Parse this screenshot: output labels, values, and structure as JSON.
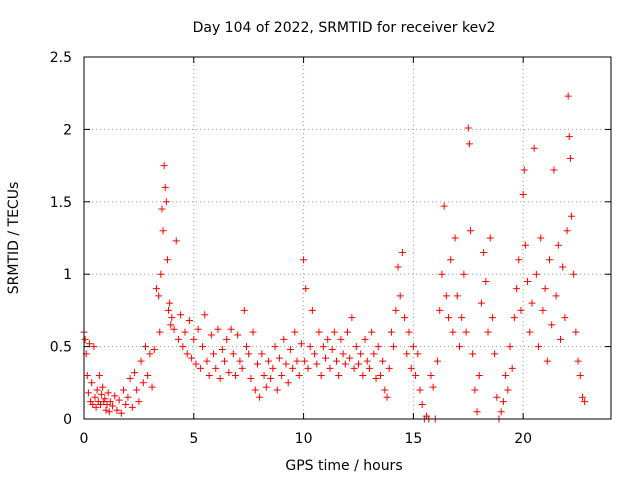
{
  "chart_data": {
    "type": "scatter",
    "title": "Day 104 of 2022, SRMTID for receiver kev2",
    "xlabel": "GPS time / hours",
    "ylabel": "SRMTID / TECUs",
    "xlim": [
      0,
      24
    ],
    "ylim": [
      0,
      2.5
    ],
    "xticks": [
      0,
      5,
      10,
      15,
      20
    ],
    "xtick_labels": [
      "0",
      "5",
      "10",
      "15",
      "20"
    ],
    "yticks": [
      0,
      0.5,
      1,
      1.5,
      2,
      2.5
    ],
    "ytick_labels": [
      "0",
      "0.5",
      "1",
      "1.5",
      "2",
      "2.5"
    ],
    "grid": true,
    "marker": "plus",
    "series": [
      {
        "name": "kev2",
        "color": "#ff0000",
        "points": [
          [
            0.0,
            0.6
          ],
          [
            0.05,
            0.55
          ],
          [
            0.1,
            0.45
          ],
          [
            0.15,
            0.3
          ],
          [
            0.2,
            0.18
          ],
          [
            0.25,
            0.52
          ],
          [
            0.3,
            0.12
          ],
          [
            0.35,
            0.25
          ],
          [
            0.4,
            0.1
          ],
          [
            0.45,
            0.5
          ],
          [
            0.5,
            0.15
          ],
          [
            0.55,
            0.08
          ],
          [
            0.6,
            0.2
          ],
          [
            0.65,
            0.12
          ],
          [
            0.7,
            0.3
          ],
          [
            0.75,
            0.1
          ],
          [
            0.8,
            0.17
          ],
          [
            0.85,
            0.22
          ],
          [
            0.9,
            0.12
          ],
          [
            0.95,
            0.14
          ],
          [
            1.0,
            0.06
          ],
          [
            1.05,
            0.1
          ],
          [
            1.1,
            0.18
          ],
          [
            1.15,
            0.05
          ],
          [
            1.2,
            0.12
          ],
          [
            1.3,
            0.09
          ],
          [
            1.4,
            0.16
          ],
          [
            1.5,
            0.06
          ],
          [
            1.6,
            0.13
          ],
          [
            1.7,
            0.04
          ],
          [
            1.8,
            0.2
          ],
          [
            1.9,
            0.1
          ],
          [
            2.0,
            0.15
          ],
          [
            2.1,
            0.28
          ],
          [
            2.2,
            0.08
          ],
          [
            2.3,
            0.32
          ],
          [
            2.4,
            0.2
          ],
          [
            2.5,
            0.12
          ],
          [
            2.6,
            0.4
          ],
          [
            2.7,
            0.25
          ],
          [
            2.8,
            0.5
          ],
          [
            2.9,
            0.3
          ],
          [
            3.0,
            0.45
          ],
          [
            3.1,
            0.22
          ],
          [
            3.2,
            0.48
          ],
          [
            3.3,
            0.9
          ],
          [
            3.4,
            0.85
          ],
          [
            3.45,
            0.6
          ],
          [
            3.5,
            1.0
          ],
          [
            3.55,
            1.45
          ],
          [
            3.6,
            1.3
          ],
          [
            3.65,
            1.75
          ],
          [
            3.7,
            1.6
          ],
          [
            3.75,
            1.5
          ],
          [
            3.8,
            1.1
          ],
          [
            3.85,
            0.75
          ],
          [
            3.9,
            0.8
          ],
          [
            3.95,
            0.65
          ],
          [
            4.0,
            0.7
          ],
          [
            4.1,
            0.62
          ],
          [
            4.2,
            1.23
          ],
          [
            4.3,
            0.55
          ],
          [
            4.4,
            0.72
          ],
          [
            4.5,
            0.5
          ],
          [
            4.6,
            0.6
          ],
          [
            4.7,
            0.45
          ],
          [
            4.8,
            0.68
          ],
          [
            4.9,
            0.42
          ],
          [
            5.0,
            0.55
          ],
          [
            5.1,
            0.38
          ],
          [
            5.2,
            0.62
          ],
          [
            5.3,
            0.35
          ],
          [
            5.4,
            0.5
          ],
          [
            5.5,
            0.72
          ],
          [
            5.6,
            0.4
          ],
          [
            5.7,
            0.3
          ],
          [
            5.8,
            0.58
          ],
          [
            5.9,
            0.45
          ],
          [
            6.0,
            0.35
          ],
          [
            6.1,
            0.62
          ],
          [
            6.2,
            0.28
          ],
          [
            6.3,
            0.48
          ],
          [
            6.4,
            0.4
          ],
          [
            6.5,
            0.55
          ],
          [
            6.6,
            0.32
          ],
          [
            6.7,
            0.62
          ],
          [
            6.8,
            0.45
          ],
          [
            6.9,
            0.3
          ],
          [
            7.0,
            0.58
          ],
          [
            7.1,
            0.4
          ],
          [
            7.2,
            0.35
          ],
          [
            7.3,
            0.75
          ],
          [
            7.4,
            0.5
          ],
          [
            7.5,
            0.45
          ],
          [
            7.6,
            0.28
          ],
          [
            7.7,
            0.6
          ],
          [
            7.8,
            0.2
          ],
          [
            7.9,
            0.38
          ],
          [
            8.0,
            0.15
          ],
          [
            8.1,
            0.45
          ],
          [
            8.2,
            0.3
          ],
          [
            8.3,
            0.22
          ],
          [
            8.4,
            0.4
          ],
          [
            8.5,
            0.28
          ],
          [
            8.6,
            0.35
          ],
          [
            8.7,
            0.5
          ],
          [
            8.8,
            0.2
          ],
          [
            8.9,
            0.42
          ],
          [
            9.0,
            0.3
          ],
          [
            9.1,
            0.55
          ],
          [
            9.2,
            0.38
          ],
          [
            9.3,
            0.25
          ],
          [
            9.4,
            0.48
          ],
          [
            9.5,
            0.35
          ],
          [
            9.6,
            0.6
          ],
          [
            9.7,
            0.4
          ],
          [
            9.8,
            0.3
          ],
          [
            9.9,
            0.52
          ],
          [
            10.0,
            1.1
          ],
          [
            10.05,
            0.4
          ],
          [
            10.1,
            0.9
          ],
          [
            10.2,
            0.35
          ],
          [
            10.3,
            0.5
          ],
          [
            10.4,
            0.75
          ],
          [
            10.5,
            0.45
          ],
          [
            10.6,
            0.38
          ],
          [
            10.7,
            0.6
          ],
          [
            10.8,
            0.3
          ],
          [
            10.9,
            0.5
          ],
          [
            11.0,
            0.42
          ],
          [
            11.1,
            0.55
          ],
          [
            11.2,
            0.35
          ],
          [
            11.3,
            0.48
          ],
          [
            11.4,
            0.6
          ],
          [
            11.5,
            0.4
          ],
          [
            11.6,
            0.3
          ],
          [
            11.7,
            0.55
          ],
          [
            11.8,
            0.45
          ],
          [
            11.9,
            0.38
          ],
          [
            12.0,
            0.6
          ],
          [
            12.1,
            0.42
          ],
          [
            12.2,
            0.7
          ],
          [
            12.3,
            0.35
          ],
          [
            12.4,
            0.5
          ],
          [
            12.5,
            0.38
          ],
          [
            12.6,
            0.45
          ],
          [
            12.7,
            0.3
          ],
          [
            12.8,
            0.55
          ],
          [
            12.9,
            0.4
          ],
          [
            13.0,
            0.35
          ],
          [
            13.1,
            0.6
          ],
          [
            13.2,
            0.45
          ],
          [
            13.3,
            0.28
          ],
          [
            13.4,
            0.5
          ],
          [
            13.5,
            0.3
          ],
          [
            13.6,
            0.4
          ],
          [
            13.7,
            0.2
          ],
          [
            13.8,
            0.15
          ],
          [
            13.9,
            0.35
          ],
          [
            14.0,
            0.6
          ],
          [
            14.1,
            0.5
          ],
          [
            14.2,
            0.75
          ],
          [
            14.3,
            1.05
          ],
          [
            14.4,
            0.85
          ],
          [
            14.5,
            1.15
          ],
          [
            14.6,
            0.7
          ],
          [
            14.7,
            0.45
          ],
          [
            14.8,
            0.6
          ],
          [
            14.9,
            0.35
          ],
          [
            15.0,
            0.5
          ],
          [
            15.1,
            0.3
          ],
          [
            15.2,
            0.45
          ],
          [
            15.3,
            0.2
          ],
          [
            15.4,
            0.1
          ],
          [
            15.5,
            0.0
          ],
          [
            15.6,
            0.02
          ],
          [
            15.7,
            0.0
          ],
          [
            15.8,
            0.3
          ],
          [
            15.9,
            0.22
          ],
          [
            16.0,
            0.0
          ],
          [
            16.1,
            0.4
          ],
          [
            16.2,
            0.75
          ],
          [
            16.3,
            1.0
          ],
          [
            16.4,
            1.47
          ],
          [
            16.5,
            0.85
          ],
          [
            16.6,
            0.7
          ],
          [
            16.7,
            1.1
          ],
          [
            16.8,
            0.6
          ],
          [
            16.9,
            1.25
          ],
          [
            17.0,
            0.85
          ],
          [
            17.1,
            0.5
          ],
          [
            17.2,
            0.7
          ],
          [
            17.3,
            1.0
          ],
          [
            17.4,
            0.6
          ],
          [
            17.5,
            2.01
          ],
          [
            17.55,
            1.9
          ],
          [
            17.6,
            1.3
          ],
          [
            17.7,
            0.45
          ],
          [
            17.8,
            0.2
          ],
          [
            17.9,
            0.05
          ],
          [
            18.0,
            0.3
          ],
          [
            18.1,
            0.8
          ],
          [
            18.2,
            1.15
          ],
          [
            18.3,
            0.95
          ],
          [
            18.4,
            0.6
          ],
          [
            18.5,
            1.25
          ],
          [
            18.6,
            0.7
          ],
          [
            18.7,
            0.45
          ],
          [
            18.8,
            0.15
          ],
          [
            18.9,
            0.0
          ],
          [
            19.0,
            0.05
          ],
          [
            19.1,
            0.12
          ],
          [
            19.2,
            0.3
          ],
          [
            19.3,
            0.2
          ],
          [
            19.4,
            0.5
          ],
          [
            19.5,
            0.35
          ],
          [
            19.6,
            0.7
          ],
          [
            19.7,
            0.9
          ],
          [
            19.8,
            1.1
          ],
          [
            19.9,
            0.75
          ],
          [
            20.0,
            1.55
          ],
          [
            20.05,
            1.72
          ],
          [
            20.1,
            1.2
          ],
          [
            20.2,
            0.95
          ],
          [
            20.3,
            0.6
          ],
          [
            20.4,
            0.8
          ],
          [
            20.5,
            1.87
          ],
          [
            20.6,
            1.0
          ],
          [
            20.7,
            0.5
          ],
          [
            20.8,
            1.25
          ],
          [
            20.9,
            0.75
          ],
          [
            21.0,
            0.9
          ],
          [
            21.1,
            0.4
          ],
          [
            21.2,
            1.1
          ],
          [
            21.3,
            0.65
          ],
          [
            21.4,
            1.72
          ],
          [
            21.5,
            0.85
          ],
          [
            21.6,
            1.2
          ],
          [
            21.7,
            0.55
          ],
          [
            21.8,
            1.05
          ],
          [
            21.9,
            0.7
          ],
          [
            22.0,
            1.3
          ],
          [
            22.05,
            2.23
          ],
          [
            22.1,
            1.95
          ],
          [
            22.15,
            1.8
          ],
          [
            22.2,
            1.4
          ],
          [
            22.3,
            1.0
          ],
          [
            22.4,
            0.6
          ],
          [
            22.5,
            0.4
          ],
          [
            22.6,
            0.3
          ],
          [
            22.7,
            0.15
          ],
          [
            22.8,
            0.12
          ]
        ]
      }
    ]
  }
}
